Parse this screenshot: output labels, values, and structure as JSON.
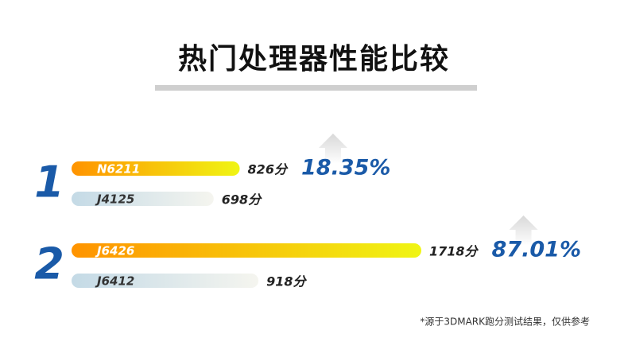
{
  "chart_data": {
    "type": "bar",
    "orientation": "horizontal",
    "title": "热门处理器性能比较",
    "groups": [
      {
        "rank": "1",
        "items": [
          {
            "name": "N6211",
            "value": 826,
            "value_label": "826分"
          },
          {
            "name": "J4125",
            "value": 698,
            "value_label": "698分"
          }
        ],
        "gain": {
          "value": 18.35,
          "label": "18.35%"
        }
      },
      {
        "rank": "2",
        "items": [
          {
            "name": "J6426",
            "value": 1718,
            "value_label": "1718分"
          },
          {
            "name": "J6412",
            "value": 918,
            "value_label": "918分"
          }
        ],
        "gain": {
          "value": 87.01,
          "label": "87.01%"
        }
      }
    ],
    "colors": {
      "primary": [
        "#ff9300",
        "#f0f514"
      ],
      "secondary": [
        "#c4dae6",
        "#f5f5ef"
      ]
    },
    "footnote": "*源于3DMARK跑分测试结果，仅供参考"
  }
}
